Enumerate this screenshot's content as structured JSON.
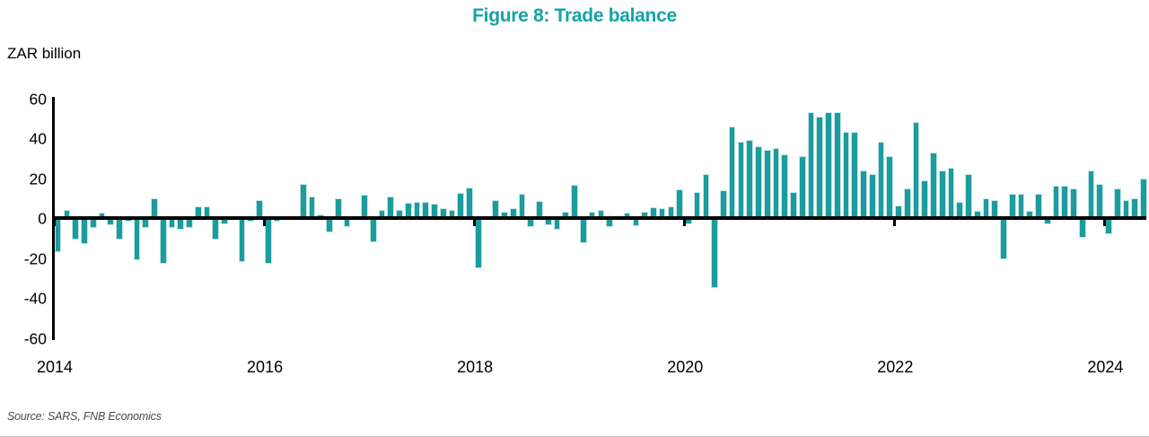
{
  "title": "Figure 8: Trade balance",
  "y_axis_label": "ZAR billion",
  "source": "Source: SARS, FNB Economics",
  "colors": {
    "title_accent": "#14a3a6",
    "bar": "#1c9c9e",
    "axis": "#000000"
  },
  "chart_data": {
    "type": "bar",
    "title": "Figure 8: Trade balance",
    "ylabel": "ZAR billion",
    "unit": "ZAR billion",
    "start_month": "2014-01",
    "end_month": "2024-05",
    "ylim": [
      -60,
      60
    ],
    "y_ticks": [
      60,
      40,
      20,
      0,
      -20,
      -40,
      -60
    ],
    "x_ticks": [
      2014,
      2016,
      2018,
      2020,
      2022,
      2024
    ],
    "grid": false,
    "legend": "none",
    "values": [
      -17,
      4,
      -11,
      -13,
      -5,
      2.5,
      -3.5,
      -11,
      -2,
      -21,
      -5,
      10,
      -23,
      -5,
      -6,
      -5,
      6,
      6,
      -11,
      -3,
      -1,
      -22,
      -2,
      9,
      -23,
      -2,
      1,
      1,
      17,
      11,
      2,
      -7,
      10,
      -4.5,
      1,
      11.5,
      -12,
      4,
      11,
      4,
      7.5,
      8,
      8,
      7,
      5,
      4,
      12.5,
      15.5,
      -25,
      0,
      9,
      3,
      5,
      12,
      -4.5,
      8.5,
      -3.5,
      -6,
      3,
      16.5,
      -12.5,
      3,
      4,
      -4.5,
      1.5,
      2.5,
      -4,
      3,
      5.5,
      5,
      6,
      14.5,
      -3,
      13,
      22,
      -35,
      14,
      46,
      38,
      39,
      36,
      34,
      35,
      32,
      13,
      31,
      53,
      51,
      53,
      53,
      43,
      43,
      24,
      22,
      38,
      31,
      6.5,
      15,
      48,
      19,
      33,
      24,
      25,
      8,
      22,
      3.5,
      10,
      9,
      -20.5,
      12,
      12,
      3.5,
      12,
      -3,
      16,
      16,
      15,
      -10,
      24,
      17,
      -8,
      15,
      9,
      10,
      20
    ]
  }
}
